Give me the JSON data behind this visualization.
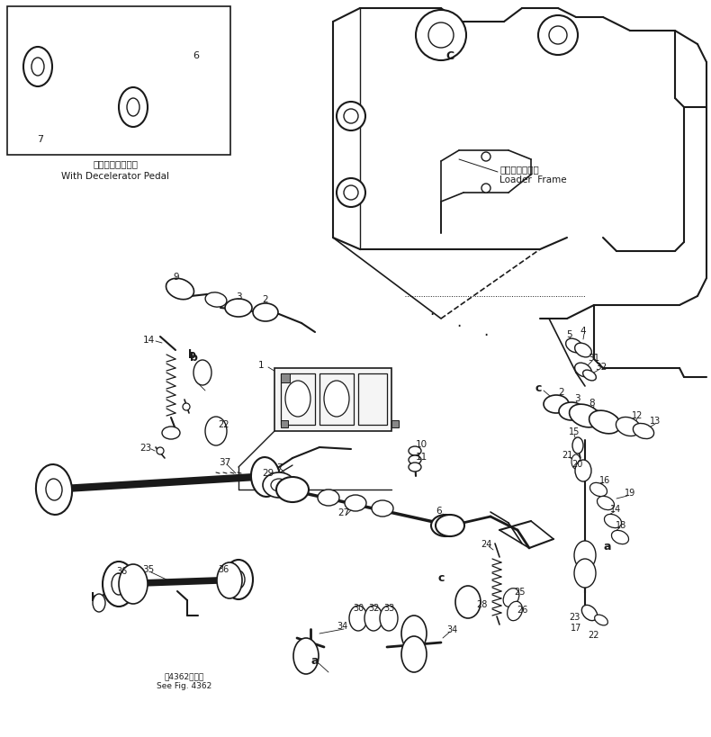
{
  "bg_color": "#ffffff",
  "line_color": "#1a1a1a",
  "fig_width": 7.9,
  "fig_height": 8.2,
  "dpi": 100,
  "inset_label_jp": "デクセルペダル付",
  "inset_label_en": "With Decelerator Pedal",
  "loader_frame_jp": "ローダフレーム",
  "loader_frame_en": "Loader  Frame",
  "see_fig_jp": "第4362図参照",
  "see_fig_en": "See Fig. 4362"
}
